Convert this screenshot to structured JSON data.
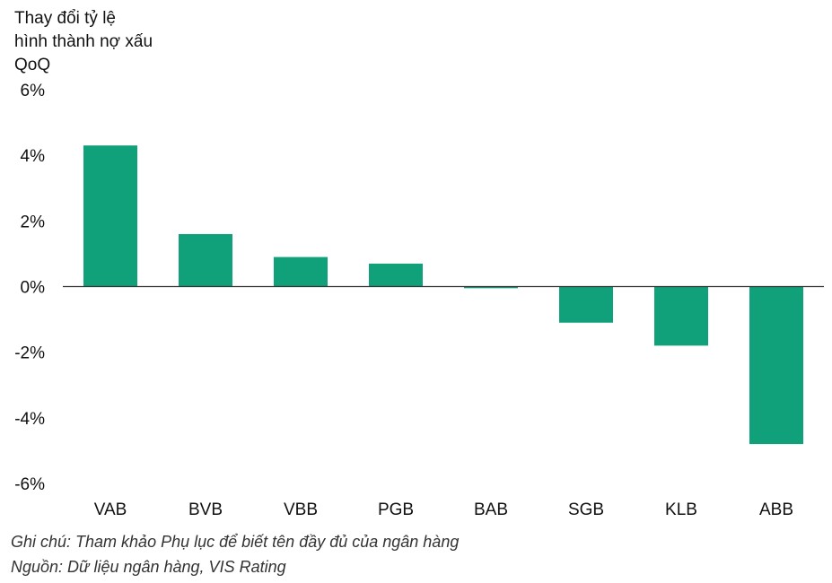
{
  "chart_data": {
    "type": "bar",
    "ylabel": "Thay đổi tỷ lệ\nhình thành nợ xấu\nQoQ",
    "categories": [
      "VAB",
      "BVB",
      "VBB",
      "PGB",
      "BAB",
      "SGB",
      "KLB",
      "ABB"
    ],
    "series": [
      {
        "values": [
          4.3,
          1.6,
          0.9,
          0.7,
          -0.05,
          -1.1,
          -1.8,
          -4.8
        ]
      }
    ],
    "ylim": [
      -6,
      6
    ],
    "yticks": [
      6,
      4,
      2,
      0,
      -2,
      -4,
      -6
    ],
    "ytick_labels": [
      "6%",
      "4%",
      "2%",
      "0%",
      "-2%",
      "-4%",
      "-6%"
    ],
    "grid": false,
    "bar_color": "#10a07a",
    "axis_color": "#333333"
  },
  "notes": {
    "note": "Ghi chú: Tham khảo Phụ lục để biết tên đầy đủ của ngân hàng",
    "source": "Nguồn: Dữ liệu ngân hàng, VIS Rating"
  }
}
